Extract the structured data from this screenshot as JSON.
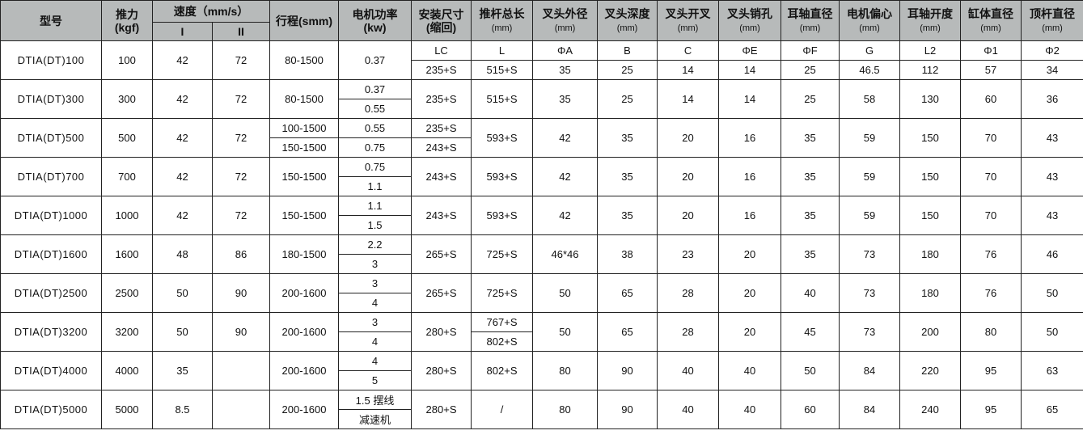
{
  "header": {
    "model": "型号",
    "thrust": "推力",
    "thrust_unit": "(kgf)",
    "speed": "速度（mm/s）",
    "speed_i": "I",
    "speed_ii": "II",
    "stroke": "行程(smm)",
    "power": "电机功率",
    "power_unit": "(kw)",
    "install": "安装尺寸",
    "install_unit": "(缩回)",
    "total_len": "推杆总长",
    "fork_od": "叉头外径",
    "fork_depth": "叉头深度",
    "fork_open": "叉头开叉",
    "fork_pin": "叉头销孔",
    "trunnion_d": "耳轴直径",
    "motor_offset": "电机偏心",
    "trunnion_open": "耳轴开度",
    "cyl_d": "缸体直径",
    "rod_d": "顶杆直径",
    "mm": "(mm)"
  },
  "rows": [
    {
      "model": "DTIA(DT)100",
      "thrust": "100",
      "v1": "42",
      "v2": "72",
      "stroke": "80-1500",
      "power": "0.37",
      "lc": [
        "LC",
        "235+S"
      ],
      "l": [
        "L",
        "515+S"
      ],
      "a": [
        "ΦA",
        "35"
      ],
      "b": [
        "B",
        "25"
      ],
      "c": [
        "C",
        "14"
      ],
      "e": [
        "ΦE",
        "14"
      ],
      "f": [
        "ΦF",
        "25"
      ],
      "g": [
        "G",
        "46.5"
      ],
      "l2": [
        "L2",
        "112"
      ],
      "d1": [
        "Φ1",
        "57"
      ],
      "d2": [
        "Φ2",
        "34"
      ]
    },
    {
      "model": "DTIA(DT)300",
      "thrust": "300",
      "v1": "42",
      "v2": "72",
      "stroke": "80-1500",
      "power": [
        "0.37",
        "0.55"
      ],
      "lc": "235+S",
      "l": "515+S",
      "a": "35",
      "b": "25",
      "c": "14",
      "e": "14",
      "f": "25",
      "g": "58",
      "l2": "130",
      "d1": "60",
      "d2": "36"
    },
    {
      "model": "DTIA(DT)500",
      "thrust": "500",
      "v1": "42",
      "v2": "72",
      "stroke": [
        "100-1500",
        "150-1500"
      ],
      "power": [
        "0.55",
        "0.75"
      ],
      "lc": [
        "235+S",
        "243+S"
      ],
      "l": "593+S",
      "a": "42",
      "b": "35",
      "c": "20",
      "e": "16",
      "f": "35",
      "g": "59",
      "l2": "150",
      "d1": "70",
      "d2": "43"
    },
    {
      "model": "DTIA(DT)700",
      "thrust": "700",
      "v1": "42",
      "v2": "72",
      "stroke": "150-1500",
      "power": [
        "0.75",
        "1.1"
      ],
      "lc": "243+S",
      "l": "593+S",
      "a": "42",
      "b": "35",
      "c": "20",
      "e": "16",
      "f": "35",
      "g": "59",
      "l2": "150",
      "d1": "70",
      "d2": "43"
    },
    {
      "model": "DTIA(DT)1000",
      "thrust": "1000",
      "v1": "42",
      "v2": "72",
      "stroke": "150-1500",
      "power": [
        "1.1",
        "1.5"
      ],
      "lc": "243+S",
      "l": "593+S",
      "a": "42",
      "b": "35",
      "c": "20",
      "e": "16",
      "f": "35",
      "g": "59",
      "l2": "150",
      "d1": "70",
      "d2": "43"
    },
    {
      "model": "DTIA(DT)1600",
      "thrust": "1600",
      "v1": "48",
      "v2": "86",
      "stroke": "180-1500",
      "power": [
        "2.2",
        "3"
      ],
      "lc": "265+S",
      "l": "725+S",
      "a": "46*46",
      "b": "38",
      "c": "23",
      "e": "20",
      "f": "35",
      "g": "73",
      "l2": "180",
      "d1": "76",
      "d2": "46"
    },
    {
      "model": "DTIA(DT)2500",
      "thrust": "2500",
      "v1": "50",
      "v2": "90",
      "stroke": "200-1600",
      "power": [
        "3",
        "4"
      ],
      "lc": "265+S",
      "l": "725+S",
      "a": "50",
      "b": "65",
      "c": "28",
      "e": "20",
      "f": "40",
      "g": "73",
      "l2": "180",
      "d1": "76",
      "d2": "50"
    },
    {
      "model": "DTIA(DT)3200",
      "thrust": "3200",
      "v1": "50",
      "v2": "90",
      "stroke": "200-1600",
      "power": [
        "3",
        "4"
      ],
      "lc": "280+S",
      "l": [
        "767+S",
        "802+S"
      ],
      "a": "50",
      "b": "65",
      "c": "28",
      "e": "20",
      "f": "45",
      "g": "73",
      "l2": "200",
      "d1": "80",
      "d2": "50"
    },
    {
      "model": "DTIA(DT)4000",
      "thrust": "4000",
      "v1": "35",
      "v2": "",
      "stroke": "200-1600",
      "power": [
        "4",
        "5"
      ],
      "lc": "280+S",
      "l": "802+S",
      "a": "80",
      "b": "90",
      "c": "40",
      "e": "40",
      "f": "50",
      "g": "84",
      "l2": "220",
      "d1": "95",
      "d2": "63"
    },
    {
      "model": "DTIA(DT)5000",
      "thrust": "5000",
      "v1": "8.5",
      "v2": "",
      "stroke": "200-1600",
      "power": [
        "1.5 摆线",
        "减速机"
      ],
      "lc": "280+S",
      "l": "/",
      "a": "80",
      "b": "90",
      "c": "40",
      "e": "40",
      "f": "60",
      "g": "84",
      "l2": "240",
      "d1": "95",
      "d2": "65"
    }
  ]
}
